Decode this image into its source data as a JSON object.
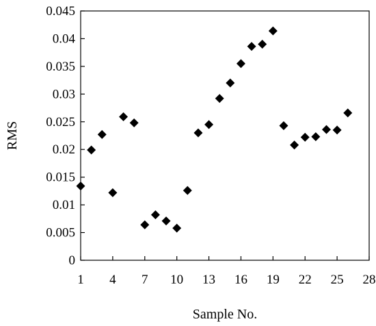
{
  "chart_data": {
    "type": "scatter",
    "title": "",
    "xlabel": "Sample No.",
    "ylabel": "RMS",
    "xlim": [
      1,
      28
    ],
    "ylim": [
      0,
      0.045
    ],
    "x_ticks": [
      1,
      4,
      7,
      10,
      13,
      16,
      19,
      22,
      25,
      28
    ],
    "x_tick_labels": [
      "1",
      "4",
      "7",
      "10",
      "13",
      "16",
      "19",
      "22",
      "25",
      "28"
    ],
    "y_ticks": [
      0,
      0.005,
      0.01,
      0.015,
      0.02,
      0.025,
      0.03,
      0.035,
      0.04,
      0.045
    ],
    "y_tick_labels": [
      "0",
      "0.005",
      "0.01",
      "0.015",
      "0.02",
      "0.025",
      "0.03",
      "0.035",
      "0.04",
      "0.045"
    ],
    "grid": false,
    "legend": "none",
    "marker": "diamond",
    "marker_color": "#000000",
    "series": [
      {
        "x": [
          1,
          2,
          3,
          4,
          5,
          6,
          7,
          8,
          9,
          10,
          11,
          12,
          13,
          14,
          15,
          16,
          17,
          18,
          19,
          20,
          21,
          22,
          23,
          24,
          25,
          26
        ],
        "y": [
          0.0134,
          0.0199,
          0.0227,
          0.0122,
          0.0259,
          0.0248,
          0.0064,
          0.0082,
          0.0071,
          0.0058,
          0.0126,
          0.023,
          0.0245,
          0.0292,
          0.032,
          0.0355,
          0.0386,
          0.039,
          0.0414,
          0.0243,
          0.0208,
          0.0222,
          0.0223,
          0.0236,
          0.0235,
          0.0266
        ]
      }
    ]
  }
}
